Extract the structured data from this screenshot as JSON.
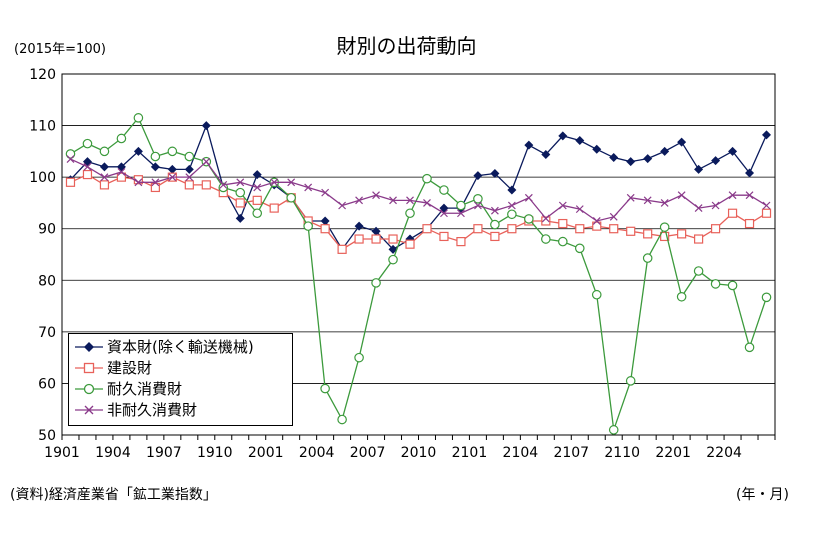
{
  "title": "財別の出荷動向",
  "unit_label": "(2015年=100)",
  "source": "(資料)経済産業省「鉱工業指数」",
  "x_unit": "(年・月)",
  "colors": {
    "capital": "#0a1a5c",
    "construction": "#e8615a",
    "durable": "#3c9a3c",
    "nondurable": "#8a3a8a",
    "grid": "#000000"
  },
  "legend": [
    {
      "label": "資本財(除く輸送機械)",
      "marker": "diamond",
      "color": "#0a1a5c"
    },
    {
      "label": "建設財",
      "marker": "square",
      "color": "#e8615a"
    },
    {
      "label": "耐久消費財",
      "marker": "circle",
      "color": "#3c9a3c"
    },
    {
      "label": "非耐久消費財",
      "marker": "cross",
      "color": "#8a3a8a"
    }
  ],
  "chart_data": {
    "type": "line",
    "title": "財別の出荷動向",
    "ylabel": "(2015年=100)",
    "xlabel": "(年・月)",
    "ylim": [
      50,
      120
    ],
    "yticks": [
      50,
      60,
      70,
      80,
      90,
      100,
      110,
      120
    ],
    "grid": true,
    "legend_position": "bottom-left",
    "x": [
      "1901",
      "1902",
      "1903",
      "1904",
      "1905",
      "1906",
      "1907",
      "1908",
      "1909",
      "1910",
      "1911",
      "1912",
      "2001",
      "2002",
      "2003",
      "2004",
      "2005",
      "2006",
      "2007",
      "2008",
      "2009",
      "2010",
      "2011",
      "2012",
      "2101",
      "2102",
      "2103",
      "2104",
      "2105",
      "2106",
      "2107",
      "2108",
      "2109",
      "2110",
      "2111",
      "2112",
      "2201",
      "2202",
      "2203",
      "2204",
      "2205",
      "2206"
    ],
    "xtick_labels": [
      "1901",
      "1904",
      "1907",
      "1910",
      "2001",
      "2004",
      "2007",
      "2010",
      "2101",
      "2104",
      "2107",
      "2110",
      "2201",
      "2204"
    ],
    "series": [
      {
        "name": "資本財(除く輸送機械)",
        "marker": "diamond",
        "color": "#0a1a5c",
        "values": [
          99.5,
          103.0,
          102.0,
          102.0,
          105.0,
          102.0,
          101.5,
          101.5,
          110.0,
          98.0,
          92.0,
          100.5,
          98.5,
          96.0,
          91.5,
          91.5,
          86.0,
          90.5,
          89.5,
          86.0,
          88.0,
          90.0,
          94.0,
          94.0,
          100.3,
          100.7,
          97.5,
          106.2,
          104.4,
          108.0,
          107.1,
          105.4,
          103.8,
          103.0,
          103.6,
          105.0,
          106.8,
          101.5,
          103.2,
          105.0,
          100.8,
          108.2
        ]
      },
      {
        "name": "建設財",
        "marker": "square",
        "color": "#e8615a",
        "values": [
          99.0,
          100.5,
          98.5,
          100.0,
          99.5,
          98.0,
          100.0,
          98.5,
          98.5,
          97.0,
          95.0,
          95.5,
          94.0,
          96.0,
          91.5,
          90.0,
          86.0,
          88.0,
          88.0,
          88.0,
          87.0,
          90.0,
          88.5,
          87.5,
          90.0,
          88.5,
          90.0,
          91.5,
          91.5,
          91.0,
          90.0,
          90.5,
          90.0,
          89.5,
          89.0,
          88.5,
          89.0,
          88.0,
          90.0,
          93.0,
          91.0,
          93.0
        ]
      },
      {
        "name": "耐久消費財",
        "marker": "circle",
        "color": "#3c9a3c",
        "values": [
          104.5,
          106.5,
          105.0,
          107.5,
          111.5,
          104.0,
          105.0,
          104.0,
          103.0,
          98.0,
          97.0,
          93.0,
          99.0,
          96.0,
          90.5,
          59.0,
          53.0,
          65.0,
          79.5,
          84.0,
          93.0,
          99.7,
          97.5,
          94.5,
          95.8,
          90.8,
          92.8,
          91.9,
          88.0,
          87.5,
          86.2,
          77.2,
          51.0,
          60.5,
          84.3,
          90.3,
          76.8,
          81.8,
          79.3,
          79.0,
          67.0,
          76.7
        ]
      },
      {
        "name": "非耐久消費財",
        "marker": "cross",
        "color": "#8a3a8a",
        "values": [
          103.5,
          102.0,
          100.0,
          101.0,
          99.0,
          99.0,
          100.0,
          100.0,
          103.0,
          98.5,
          99.0,
          98.0,
          99.0,
          99.0,
          98.0,
          97.0,
          94.5,
          95.5,
          96.5,
          95.5,
          95.5,
          95.0,
          93.0,
          93.0,
          94.5,
          93.5,
          94.5,
          96.0,
          92.0,
          94.5,
          93.8,
          91.5,
          92.3,
          96.0,
          95.5,
          95.0,
          96.5,
          94.0,
          94.5,
          96.5,
          96.5,
          94.5
        ]
      }
    ]
  }
}
